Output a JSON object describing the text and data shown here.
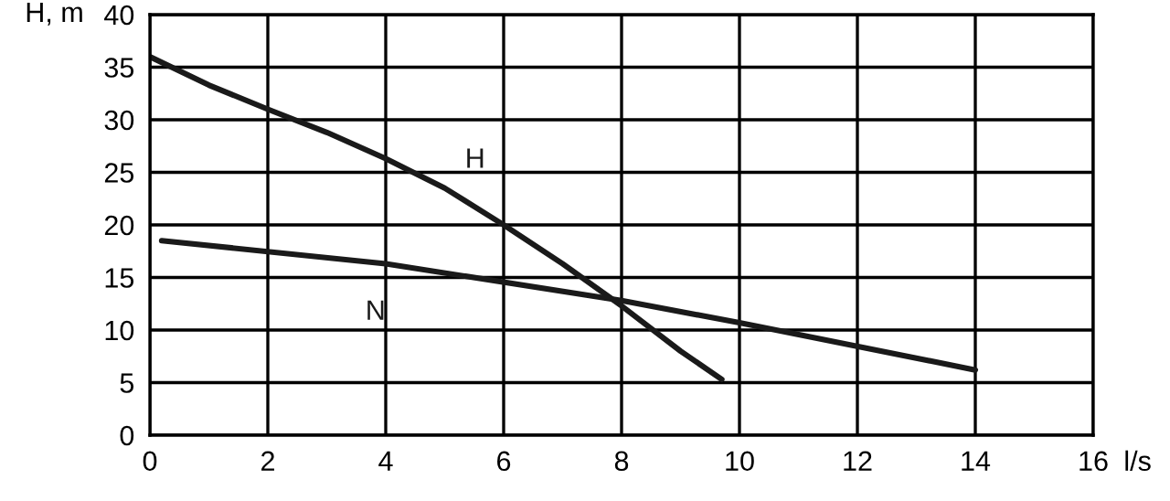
{
  "chart_data": {
    "type": "line",
    "xlabel": "l/s",
    "ylabel": "H, m",
    "series": [
      {
        "name": "H",
        "color": "#1a1a1a",
        "x": [
          0,
          1,
          2,
          3,
          4,
          5,
          6,
          7,
          8,
          9,
          9.7
        ],
        "values": [
          36,
          33.3,
          31,
          28.8,
          26.3,
          23.5,
          20,
          16.3,
          12.3,
          8,
          5.3
        ]
      },
      {
        "name": "N",
        "color": "#1a1a1a",
        "x": [
          0.2,
          4,
          8,
          10,
          14
        ],
        "values": [
          18.5,
          16.3,
          12.8,
          10.7,
          6.2
        ]
      }
    ],
    "xlim": [
      0,
      16
    ],
    "xticks": [
      0,
      2,
      4,
      6,
      8,
      10,
      12,
      14,
      16
    ],
    "ylim": [
      0,
      40
    ],
    "yticks": [
      0,
      5,
      10,
      15,
      20,
      25,
      30,
      35,
      40
    ],
    "grid": true,
    "legend": false,
    "marker": "none",
    "line_style": "solid"
  }
}
